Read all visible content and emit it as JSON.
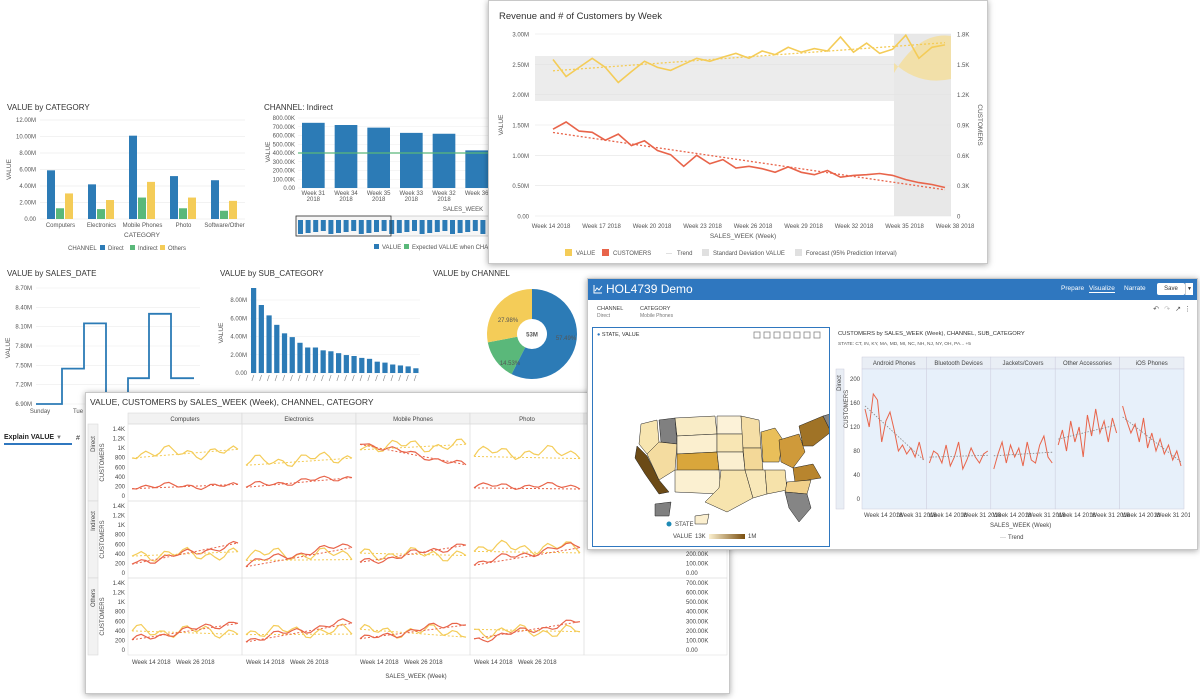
{
  "value_by_category": {
    "title": "VALUE by CATEGORY",
    "legend_channel_label": "CHANNEL",
    "x_label": "CATEGORY",
    "y_label": "VALUE",
    "series_colors": {
      "Direct": "#2c7bb6",
      "Indirect": "#5ab87a",
      "Others": "#f4cc58"
    },
    "chart_data": {
      "type": "bar",
      "categories": [
        "Computers",
        "Electronics",
        "Mobile Phones",
        "Photo",
        "Software/Other"
      ],
      "series": [
        {
          "name": "Direct",
          "values": [
            5.9,
            4.2,
            10.1,
            5.2,
            4.7
          ]
        },
        {
          "name": "Indirect",
          "values": [
            1.3,
            1.2,
            2.6,
            1.3,
            1.0
          ]
        },
        {
          "name": "Others",
          "values": [
            3.1,
            2.3,
            4.5,
            2.6,
            2.2
          ]
        }
      ],
      "y_ticks": [
        "12.00M",
        "10.00M",
        "8.00M",
        "6.00M",
        "4.00M",
        "2.00M",
        "0.00"
      ],
      "ylim": [
        0,
        12
      ]
    }
  },
  "channel_indirect": {
    "title": "CHANNEL: Indirect",
    "x_label": "SALES_WEEK",
    "y_label": "VALUE",
    "legend_value": "VALUE",
    "legend_expected": "Expected VALUE when CHANNE",
    "chart_data": {
      "type": "bar",
      "categories": [
        "Week 31 2018",
        "Week 34 2018",
        "Week 35 2018",
        "Week 33 2018",
        "Week 32 2018",
        "Week 36"
      ],
      "values": [
        745,
        720,
        690,
        630,
        620,
        430
      ],
      "expected": 400,
      "y_ticks": [
        "800.00K",
        "700.00K",
        "600.00K",
        "500.00K",
        "400.00K",
        "300.00K",
        "200.00K",
        "100.00K",
        "0.00"
      ],
      "ylim": [
        0,
        800
      ]
    }
  },
  "revenue_customers": {
    "title": "Revenue and # of Customers by Week",
    "x_label": "SALES_WEEK (Week)",
    "y_label": "VALUE",
    "y2_label": "CUSTOMERS",
    "legend": {
      "value": "VALUE",
      "customers": "CUSTOMERS",
      "trend": "Trend",
      "stddev": "Standard Deviation VALUE",
      "forecast": "Forecast (95% Prediction Interval)"
    },
    "chart_data": {
      "type": "line",
      "x_ticks": [
        "Week 14 2018",
        "Week 17 2018",
        "Week 20 2018",
        "Week 23 2018",
        "Week 26 2018",
        "Week 29 2018",
        "Week 32 2018",
        "Week 35 2018",
        "Week 38 2018"
      ],
      "y_ticks": [
        "3.00M",
        "2.50M",
        "2.00M",
        "1.50M",
        "1.00M",
        "0.50M",
        "0.00"
      ],
      "y2_ticks": [
        "1.8K",
        "1.5K",
        "1.2K",
        "0.9K",
        "0.6K",
        "0.3K",
        "0"
      ],
      "value_series": [
        2.58,
        2.3,
        2.45,
        2.6,
        2.45,
        2.2,
        2.38,
        2.55,
        2.45,
        2.4,
        2.5,
        2.6,
        2.55,
        2.62,
        2.68,
        2.6,
        2.72,
        2.66,
        2.78,
        2.7,
        2.76,
        2.72,
        2.95,
        2.7,
        2.85,
        2.68,
        2.75,
        2.98,
        2.6,
        2.78,
        2.82
      ],
      "customers_series": [
        1.43,
        1.55,
        1.4,
        1.38,
        1.25,
        1.35,
        1.16,
        1.24,
        1.08,
        1.01,
        0.82,
        1.0,
        0.86,
        0.93,
        0.79,
        0.82,
        0.78,
        0.72,
        0.81,
        0.72,
        0.68,
        0.75,
        0.64,
        0.67,
        0.68,
        0.7,
        0.67,
        0.6,
        0.55,
        0.52,
        0.47
      ]
    }
  },
  "value_by_sales_date": {
    "title": "VALUE by SALES_DATE",
    "y_label": "VALUE",
    "chart_data": {
      "type": "line",
      "x_ticks": [
        "Sunday",
        "Tue"
      ],
      "y_ticks": [
        "8.70M",
        "8.40M",
        "8.10M",
        "7.80M",
        "7.50M",
        "7.20M",
        "6.90M"
      ],
      "values": [
        6.9,
        6.9,
        7.45,
        7.45,
        8.15,
        8.15,
        6.9,
        6.9,
        7.3,
        7.3,
        8.3,
        8.3,
        7.3,
        7.3
      ]
    }
  },
  "value_by_sub_category": {
    "title": "VALUE by SUB_CATEGORY",
    "y_label": "VALUE",
    "chart_data": {
      "type": "bar",
      "values": [
        9.0,
        7.2,
        6.1,
        5.1,
        4.2,
        3.8,
        3.2,
        2.7,
        2.7,
        2.4,
        2.3,
        2.1,
        1.9,
        1.8,
        1.6,
        1.5,
        1.2,
        1.1,
        0.9,
        0.8,
        0.7,
        0.5
      ],
      "y_ticks": [
        "8.00M",
        "6.00M",
        "4.00M",
        "2.00M",
        "0.00"
      ],
      "ylim": [
        0,
        9
      ]
    }
  },
  "value_by_channel": {
    "title": "VALUE by CHANNEL",
    "center_label": "53M",
    "chart_data": {
      "type": "pie",
      "slices": [
        {
          "label": "57.49%",
          "value": 57.49,
          "color": "#2c7bb6"
        },
        {
          "label": "14.53%",
          "value": 14.53,
          "color": "#5ab87a"
        },
        {
          "label": "27.98%",
          "value": 27.98,
          "color": "#f4cc58"
        }
      ]
    }
  },
  "explain": {
    "label": "Explain VALUE",
    "hash": "#"
  },
  "trellis": {
    "title": "VALUE, CUSTOMERS by SALES_WEEK (Week), CHANNEL, CATEGORY",
    "columns": [
      "Computers",
      "Electronics",
      "Mobile Phones",
      "Photo"
    ],
    "rows": [
      "Direct",
      "Indirect",
      "Others"
    ],
    "y_label": "CUSTOMERS",
    "y_ticks": [
      "1.4K",
      "1.2K",
      "1K",
      "800",
      "600",
      "400",
      "200",
      "0"
    ],
    "y2_ticks": [
      "700.00K",
      "600.00K",
      "500.00K",
      "400.00K",
      "300.00K",
      "200.00K",
      "100.00K",
      "0.00"
    ],
    "x_ticks": [
      "Week 14 2018",
      "Week 26 2018"
    ],
    "x_label": "SALES_WEEK (Week)"
  },
  "hol": {
    "app_title": "HOL4739 Demo",
    "tabs": [
      "Prepare",
      "Visualize",
      "Narrate"
    ],
    "save": "Save",
    "filters": [
      {
        "label": "CHANNEL",
        "value": "Direct"
      },
      {
        "label": "CATEGORY",
        "value": "Mobile Phones"
      }
    ],
    "map": {
      "title": "STATE, VALUE",
      "legend_state": "STATE",
      "legend_value": "VALUE",
      "legend_min": "13K",
      "legend_max": "1M"
    },
    "right_chart": {
      "title": "CUSTOMERS by SALES_WEEK (Week), CHANNEL, SUB_CATEGORY",
      "state_filter": "STATE: CT, IN, KY, MA, MD, MI, NC, NH, NJ, NY, OH, PA... +5",
      "row_label": "Direct",
      "y_label": "CUSTOMERS",
      "panels": [
        "Android Phones",
        "Bluetooth Devices",
        "Jackets/Covers",
        "Other Accessories",
        "iOS Phones"
      ],
      "y_ticks": [
        "200",
        "160",
        "120",
        "80",
        "40",
        "0"
      ],
      "x_ticks": [
        "Week 14 2018",
        "Week 31 2018"
      ],
      "x_label": "SALES_WEEK (Week)",
      "legend": "Trend"
    }
  }
}
